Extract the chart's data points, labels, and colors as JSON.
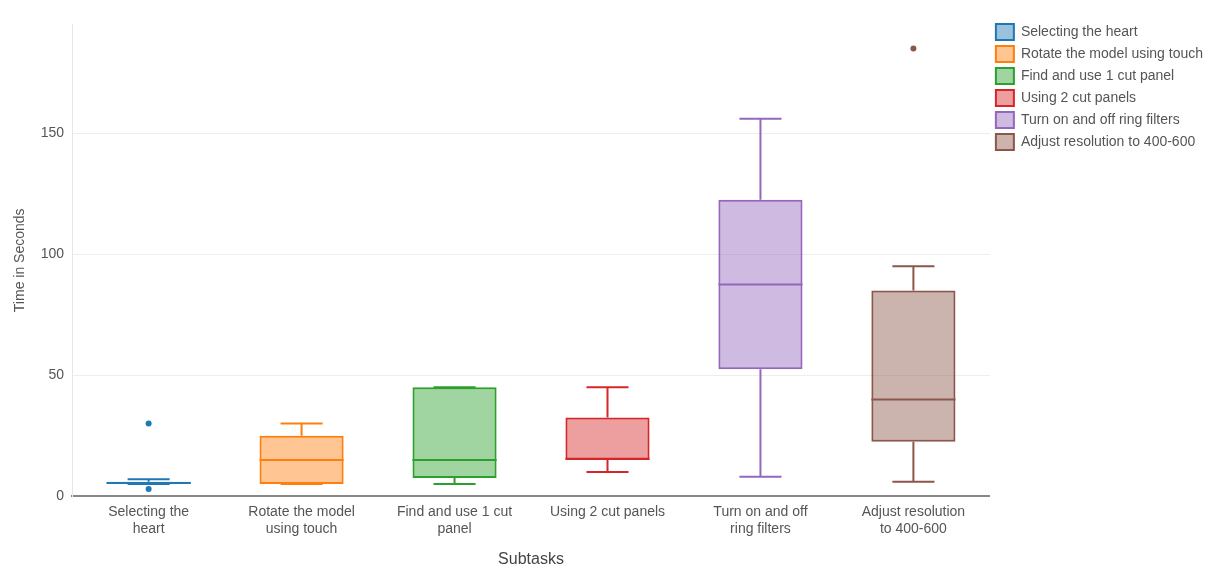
{
  "chart_data": {
    "type": "box",
    "xlabel": "Subtasks",
    "ylabel": "Time in Seconds",
    "categories": [
      "Selecting the heart",
      "Rotate the model using touch",
      "Find and use 1 cut panel",
      "Using 2 cut panels",
      "Turn on and off ring filters",
      "Adjust resolution to 400-600"
    ],
    "ylim": [
      0,
      195
    ],
    "yticks": [
      0,
      50,
      100,
      150
    ],
    "grid": "y",
    "legend": "top right",
    "series": [
      {
        "name": "Selecting the heart",
        "color": "#1f77b4",
        "boxes": [
          {
            "low": 5,
            "q1": 5,
            "median": 5.5,
            "q3": 6,
            "high": 7,
            "outliers": [
              30,
              3
            ]
          },
          null,
          null,
          null,
          null,
          null
        ]
      },
      {
        "name": "Rotate the model using touch",
        "color": "#ff7f0e",
        "boxes": [
          null,
          {
            "low": 5,
            "q1": 5,
            "median": 15,
            "q3": 25,
            "high": 30
          },
          null,
          null,
          null,
          null
        ]
      },
      {
        "name": "Find and use 1 cut panel",
        "color": "#2ca02c",
        "boxes": [
          null,
          null,
          {
            "low": 5,
            "q1": 7.5,
            "median": 15,
            "q3": 45,
            "high": 45
          },
          null,
          null,
          null
        ]
      },
      {
        "name": "Using 2 cut panels",
        "color": "#d62728",
        "boxes": [
          null,
          null,
          null,
          {
            "low": 10,
            "q1": 15,
            "median": 15.5,
            "q3": 32.5,
            "high": 45
          },
          null,
          null
        ]
      },
      {
        "name": "Turn on and off ring filters",
        "color": "#9467bd",
        "boxes": [
          null,
          null,
          null,
          null,
          {
            "low": 8,
            "q1": 52.5,
            "median": 87.5,
            "q3": 122.5,
            "high": 156
          },
          null
        ]
      },
      {
        "name": "Adjust resolution to 400-600",
        "color": "#8c564b",
        "boxes": [
          null,
          null,
          null,
          null,
          null,
          {
            "low": 6,
            "q1": 22.5,
            "median": 40,
            "q3": 85,
            "high": 95,
            "outliers": [
              185
            ]
          }
        ]
      }
    ]
  }
}
